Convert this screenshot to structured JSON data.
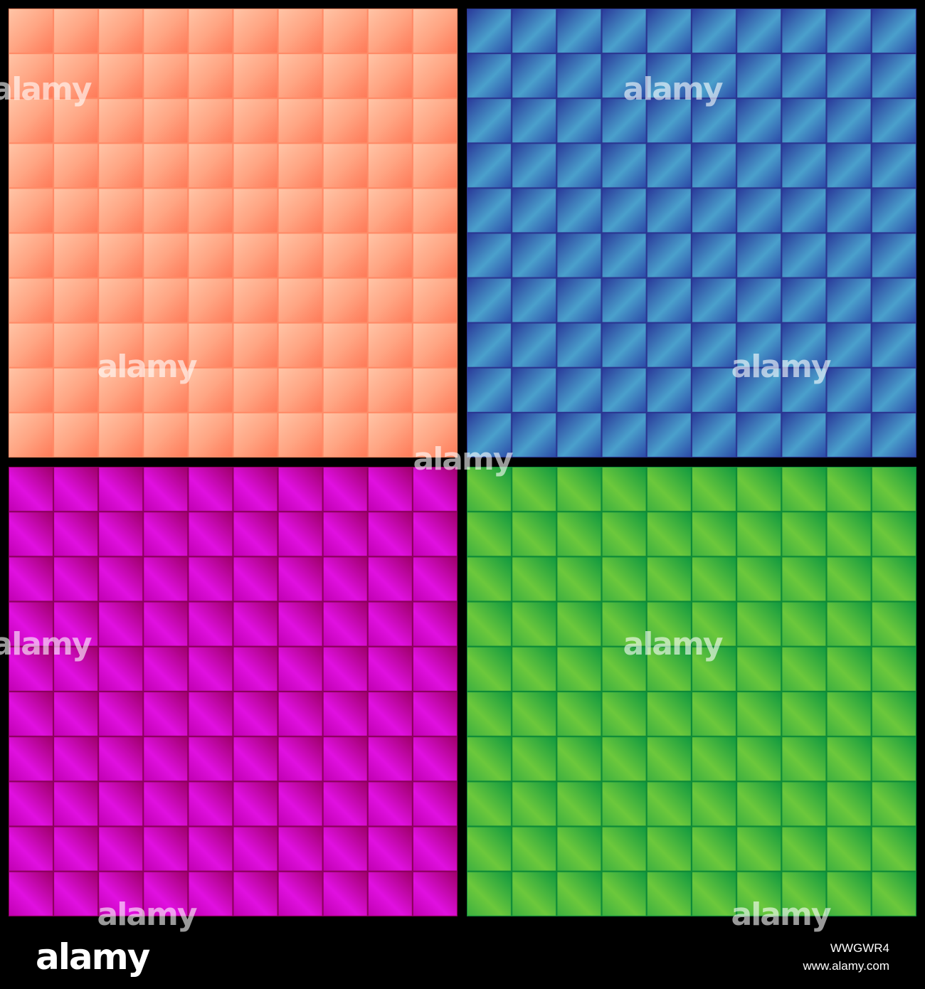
{
  "watermark": "alamy",
  "footer": {
    "logo": "alamy",
    "image_id": "WWGWR4",
    "url": "www.alamy.com"
  }
}
